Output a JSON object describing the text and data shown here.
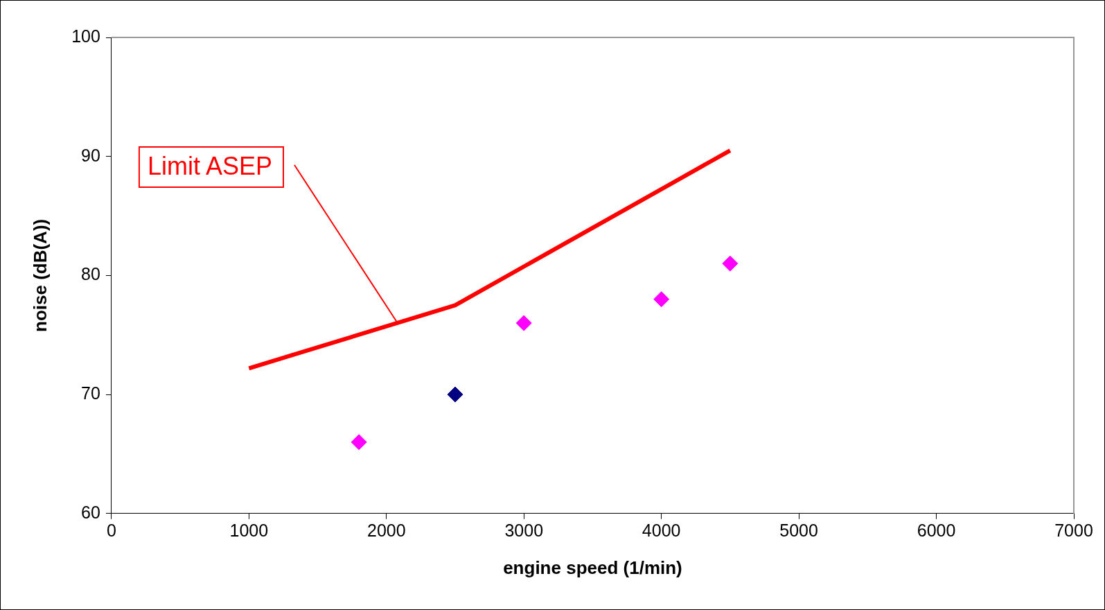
{
  "chart_data": {
    "type": "scatter",
    "xlabel": "engine speed (1/min)",
    "ylabel": "noise (dB(A))",
    "xlim": [
      0,
      7000
    ],
    "xticks": [
      0,
      1000,
      2000,
      3000,
      4000,
      5000,
      6000,
      7000
    ],
    "ylim": [
      60,
      100
    ],
    "yticks": [
      60,
      70,
      80,
      90,
      100
    ],
    "grid": false,
    "legend": false,
    "marker": "diamond",
    "series": [
      {
        "name": "Limit ASEP",
        "type": "line",
        "color": "#ff0000",
        "line_style": "solid",
        "marker": "none",
        "x": [
          1000,
          2500,
          4500
        ],
        "values": [
          72.2,
          77.5,
          90.5
        ]
      },
      {
        "type": "scatter",
        "color": "#ff00ff",
        "x": [
          1800,
          3000,
          4000,
          4500
        ],
        "values": [
          66,
          76,
          78,
          81
        ]
      },
      {
        "type": "scatter",
        "color": "#000080",
        "x": [
          2500
        ],
        "values": [
          70
        ]
      }
    ]
  }
}
